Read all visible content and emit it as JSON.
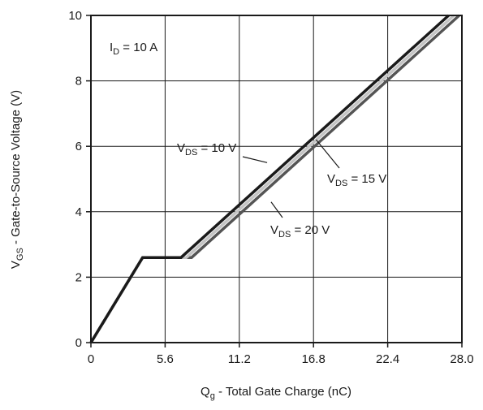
{
  "chart_data": {
    "type": "line",
    "title": "",
    "xlabel": {
      "main": "Q",
      "sub": "g",
      "rest": " - Total Gate Charge (nC)"
    },
    "ylabel": {
      "main": "V",
      "sub": "GS",
      "rest": " - Gate-to-Source Voltage (V)"
    },
    "xlim": [
      0,
      28.0
    ],
    "ylim": [
      0,
      10
    ],
    "x_ticks": [
      0,
      5.6,
      11.2,
      16.8,
      22.4,
      28.0
    ],
    "x_tick_labels": [
      "0",
      "5.6",
      "11.2",
      "16.8",
      "22.4",
      "28.0"
    ],
    "y_ticks": [
      0,
      2,
      4,
      6,
      8,
      10
    ],
    "y_tick_labels": [
      "0",
      "2",
      "4",
      "6",
      "8",
      "10"
    ],
    "grid": true,
    "condition": {
      "main": "I",
      "sub": "D",
      "rest": " = 10 A"
    },
    "series": [
      {
        "name": "V_DS = 10 V",
        "color": "#1a1a1a",
        "points": [
          [
            0,
            0
          ],
          [
            3.9,
            2.6
          ],
          [
            6.8,
            2.6
          ],
          [
            27.0,
            10
          ]
        ]
      },
      {
        "name": "V_DS = 15 V",
        "color": "#c4c4c4",
        "points": [
          [
            0,
            0
          ],
          [
            3.9,
            2.6
          ],
          [
            7.2,
            2.6
          ],
          [
            27.4,
            10
          ]
        ]
      },
      {
        "name": "V_DS = 20 V",
        "color": "#555555",
        "points": [
          [
            0,
            0
          ],
          [
            3.9,
            2.6
          ],
          [
            7.6,
            2.6
          ],
          [
            27.8,
            10
          ]
        ]
      }
    ],
    "annotations": [
      {
        "main": "V",
        "sub": "DS",
        "rest": " = 10 V",
        "target": [
          13.3,
          5.5
        ]
      },
      {
        "main": "V",
        "sub": "DS",
        "rest": " = 15 V",
        "target": [
          17.0,
          6.2
        ]
      },
      {
        "main": "V",
        "sub": "DS",
        "rest": " = 20 V",
        "target": [
          13.6,
          4.3
        ]
      }
    ]
  }
}
